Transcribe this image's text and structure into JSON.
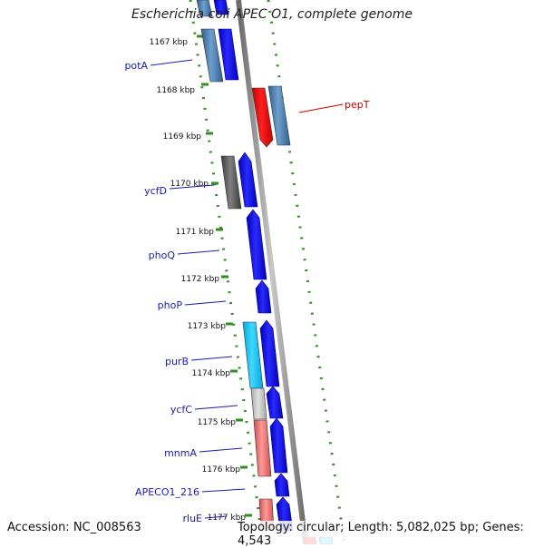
{
  "title": "Escherichia coli APEC O1, complete genome",
  "footer": {
    "accession": "Accession: NC_008563",
    "summary": "Topology: circular; Length: 5,082,025 bp; Genes: 4,543"
  },
  "colors": {
    "backbone": "#888888",
    "ruler": "#2f8f1f",
    "forward_gene": "#1010e8",
    "label_left": "#1a1ab8",
    "label_right": "#cc0000"
  },
  "ticks": [
    {
      "label": "1167 kbp",
      "kb": 1167
    },
    {
      "label": "1168 kbp",
      "kb": 1168
    },
    {
      "label": "1169 kbp",
      "kb": 1169
    },
    {
      "label": "1170 kbp",
      "kb": 1170
    },
    {
      "label": "1171 kbp",
      "kb": 1171
    },
    {
      "label": "1172 kbp",
      "kb": 1172
    },
    {
      "label": "1173 kbp",
      "kb": 1173
    },
    {
      "label": "1174 kbp",
      "kb": 1174
    },
    {
      "label": "1175 kbp",
      "kb": 1175
    },
    {
      "label": "1176 kbp",
      "kb": 1176
    },
    {
      "label": "1177 kbp",
      "kb": 1177
    }
  ],
  "gene_labels": [
    {
      "text": "potA",
      "side": "left"
    },
    {
      "text": "pepT",
      "side": "right"
    },
    {
      "text": "ycfD",
      "side": "left"
    },
    {
      "text": "phoQ",
      "side": "left"
    },
    {
      "text": "phoP",
      "side": "left"
    },
    {
      "text": "purB",
      "side": "left"
    },
    {
      "text": "ycfC",
      "side": "left"
    },
    {
      "text": "mnmA",
      "side": "left"
    },
    {
      "text": "APECO1_216",
      "side": "left"
    },
    {
      "text": "rluE",
      "side": "left"
    }
  ]
}
